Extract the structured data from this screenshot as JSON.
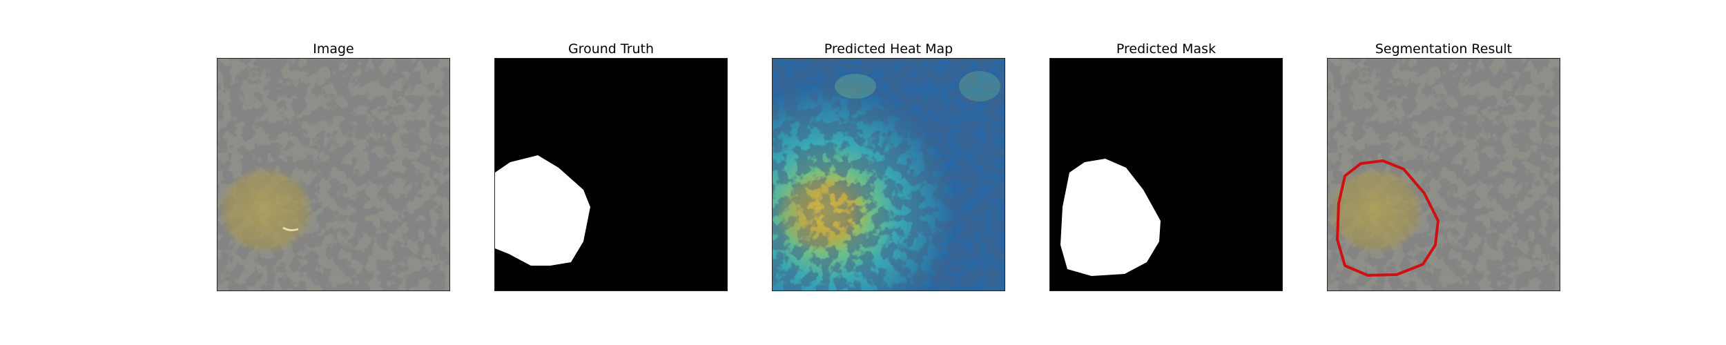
{
  "panels": [
    {
      "id": "image",
      "title": "Image"
    },
    {
      "id": "ground-truth",
      "title": "Ground Truth"
    },
    {
      "id": "heatmap",
      "title": "Predicted Heat Map"
    },
    {
      "id": "mask",
      "title": "Predicted Mask"
    },
    {
      "id": "result",
      "title": "Segmentation Result"
    }
  ],
  "colors": {
    "background": "#ffffff",
    "stone_base": "#8f8f8a",
    "stone_dark": "#3b3b3b",
    "mask_bg": "#000000",
    "mask_fg": "#ffffff",
    "contour": "#d01010",
    "heat_low": "#2b6aa3",
    "heat_mid": "#3fb8b0",
    "heat_high": "#d9c238"
  }
}
